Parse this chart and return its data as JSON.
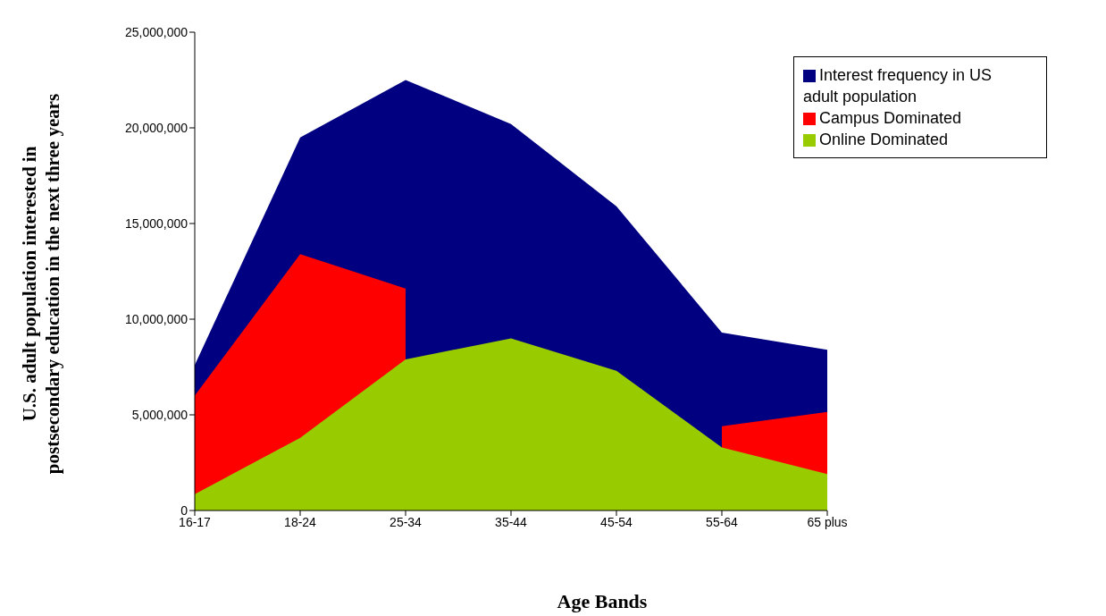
{
  "chart_data": {
    "type": "area",
    "xlabel": "Age Bands",
    "ylabel": "U.S. adult population interested in postsecondary education in the next three years",
    "categories": [
      "16-17",
      "18-24",
      "25-34",
      "35-44",
      "45-54",
      "55-64",
      "65 plus"
    ],
    "series": [
      {
        "name": "Interest frequency in US adult population",
        "color": "#000080",
        "values": [
          7600000,
          19500000,
          22500000,
          20200000,
          15900000,
          9300000,
          8400000
        ]
      },
      {
        "name": "Campus Dominated",
        "color": "#ff0000",
        "values": [
          6000000,
          13400000,
          11600000,
          null,
          null,
          4400000,
          5150000
        ]
      },
      {
        "name": "Online Dominated",
        "color": "#99cc00",
        "values": [
          850000,
          3800000,
          7900000,
          9000000,
          7300000,
          3300000,
          1900000
        ]
      }
    ],
    "ylim": [
      0,
      25000000
    ],
    "yticks": [
      {
        "value": 0,
        "label": "0"
      },
      {
        "value": 5000000,
        "label": "5,000,000"
      },
      {
        "value": 10000000,
        "label": "10,000,000"
      },
      {
        "value": 15000000,
        "label": "15,000,000"
      },
      {
        "value": 20000000,
        "label": "20,000,000"
      },
      {
        "value": 25000000,
        "label": "25,000,000"
      }
    ],
    "grid": false,
    "legend": "top right"
  }
}
